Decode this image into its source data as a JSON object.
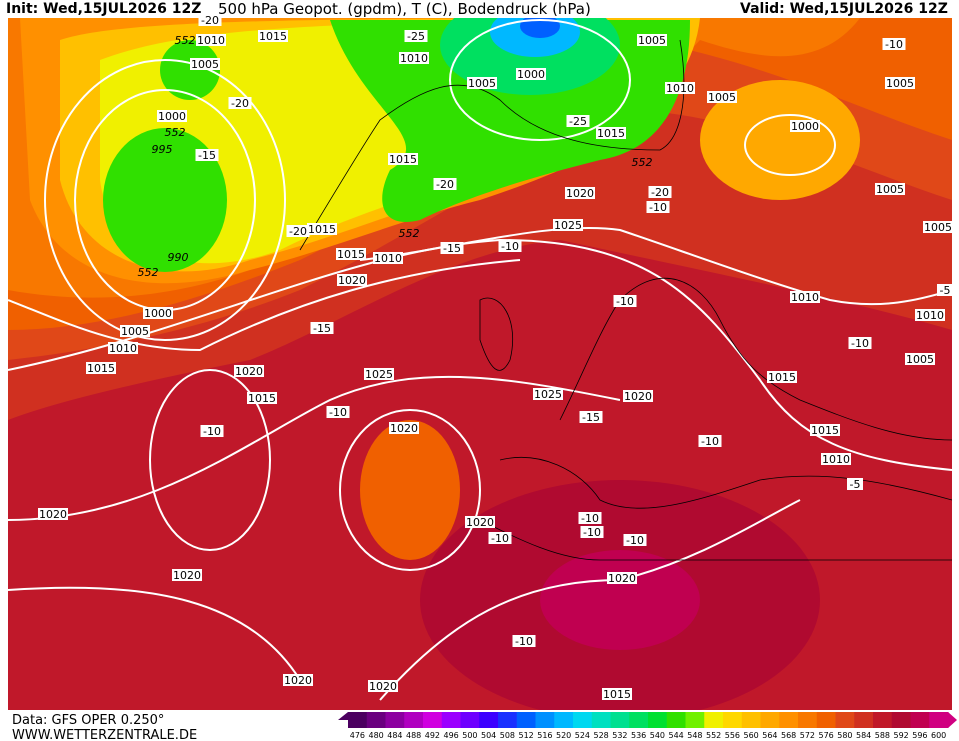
{
  "header": {
    "init": "Init: Wed,15JUL2026 12Z",
    "title": "500 hPa Geopot. (gpdm), T (C), Bodendruck (hPa)",
    "valid": "Valid: Wed,15JUL2026 12Z"
  },
  "footer": {
    "data": "Data: GFS OPER 0.250°",
    "site": "WWW.WETTERZENTRALE.DE"
  },
  "colorbar": {
    "values": [
      476,
      480,
      484,
      488,
      492,
      496,
      500,
      504,
      508,
      512,
      516,
      520,
      524,
      528,
      532,
      536,
      540,
      544,
      548,
      552,
      556,
      560,
      564,
      568,
      572,
      576,
      580,
      584,
      588,
      592,
      596,
      600
    ],
    "colors": [
      "#4b0060",
      "#6a007f",
      "#8c00a0",
      "#b000c0",
      "#d000e0",
      "#9b00ff",
      "#6e00ff",
      "#3c00ff",
      "#1a30ff",
      "#0060ff",
      "#0090ff",
      "#00b8ff",
      "#00d8f0",
      "#00e0c0",
      "#00e090",
      "#00e060",
      "#00e030",
      "#30e000",
      "#70f000",
      "#f0f000",
      "#ffd800",
      "#ffc000",
      "#ffa800",
      "#ff9000",
      "#f87800",
      "#f06000",
      "#e04818",
      "#d03020",
      "#c01828",
      "#b00a30",
      "#c00050",
      "#d00080"
    ]
  },
  "map_labels": [
    "-20",
    "552",
    "1010",
    "1015",
    "-25",
    "1010",
    "1005",
    "1005",
    "1005",
    "1000",
    "1010",
    "1005",
    "-10",
    "1005",
    "-20",
    "1000",
    "552",
    "995",
    "-15",
    "-25",
    "1015",
    "1000",
    "1015",
    "552",
    "-20",
    "1020",
    "-20",
    "-10",
    "1005",
    "-20",
    "1015",
    "552",
    "1025",
    "1005",
    "-15",
    "-10",
    "1015",
    "1010",
    "990",
    "552",
    "1020",
    "-5",
    "-10",
    "1010",
    "1000",
    "1010",
    "-15",
    "1005",
    "-10",
    "1010",
    "1005",
    "1015",
    "1020",
    "1025",
    "1015",
    "1025",
    "1020",
    "1015",
    "-10",
    "-15",
    "1020",
    "-10",
    "1015",
    "-10",
    "1010",
    "-5",
    "1020",
    "-10",
    "-10",
    "1020",
    "-10",
    "-10",
    "1020",
    "1020",
    "-10",
    "1020",
    "1020",
    "1015"
  ]
}
